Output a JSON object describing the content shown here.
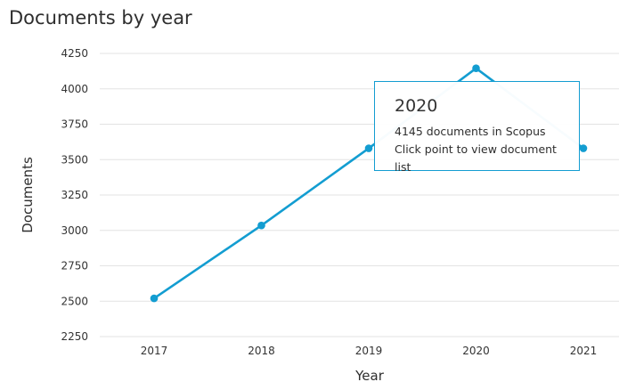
{
  "page_title": "Documents by year",
  "colors": {
    "series": "#139dd1",
    "grid": "#e3e3e3",
    "tooltip_border": "#139dd1"
  },
  "tooltip": {
    "year": "2020",
    "count_line": "4145 documents in Scopus",
    "hint": "Click point to view document list"
  },
  "chart_data": {
    "type": "line",
    "title": "Documents by year",
    "xlabel": "Year",
    "ylabel": "Documents",
    "x": [
      "2017",
      "2018",
      "2019",
      "2020",
      "2021"
    ],
    "series": [
      {
        "values": [
          2520,
          3035,
          3580,
          4145,
          3580
        ]
      }
    ],
    "ylim": [
      2250,
      4250
    ],
    "yticks": [
      2250,
      2500,
      2750,
      3000,
      3250,
      3500,
      3750,
      4000,
      4250
    ],
    "grid": true,
    "highlighted_point": {
      "x": "2020",
      "y": 4145
    }
  }
}
